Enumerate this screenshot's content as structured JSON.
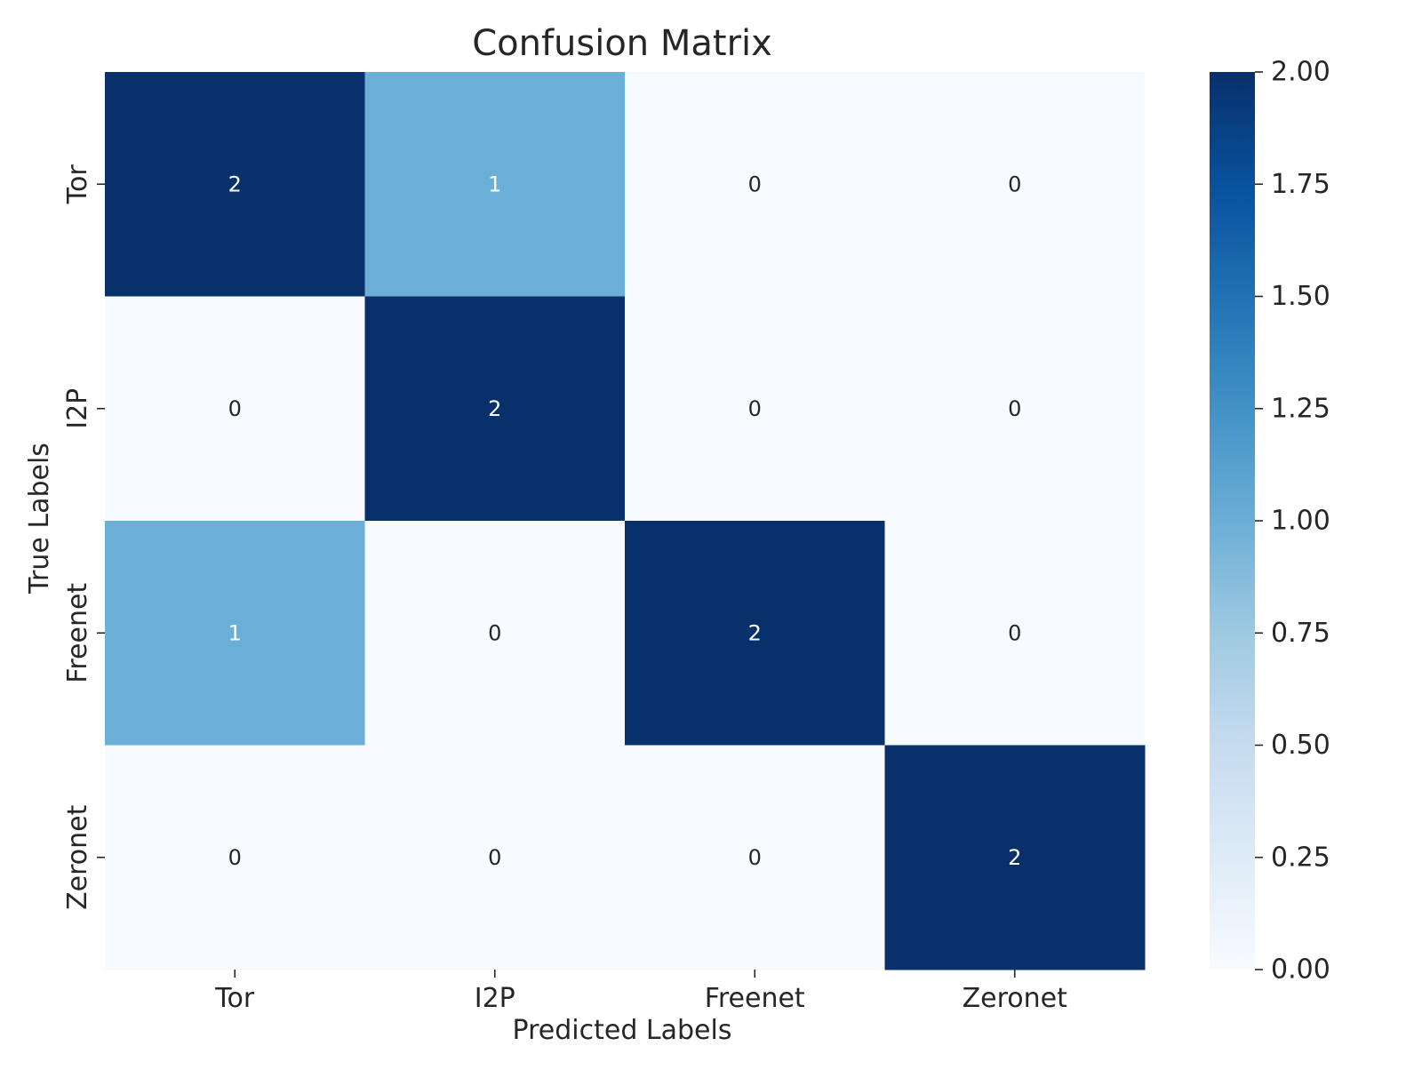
{
  "chart_data": {
    "type": "heatmap",
    "title": "Confusion Matrix",
    "xlabel": "Predicted Labels",
    "ylabel": "True Labels",
    "x_categories": [
      "Tor",
      "I2P",
      "Freenet",
      "Zeronet"
    ],
    "y_categories": [
      "Tor",
      "I2P",
      "Freenet",
      "Zeronet"
    ],
    "values": [
      [
        2,
        1,
        0,
        0
      ],
      [
        0,
        2,
        0,
        0
      ],
      [
        1,
        0,
        2,
        0
      ],
      [
        0,
        0,
        0,
        2
      ]
    ],
    "colormap": "Blues",
    "vmin": 0,
    "vmax": 2,
    "colorbar_ticks": [
      "0.00",
      "0.25",
      "0.50",
      "0.75",
      "1.00",
      "1.25",
      "1.50",
      "1.75",
      "2.00"
    ],
    "annotated": true,
    "grid": false
  }
}
